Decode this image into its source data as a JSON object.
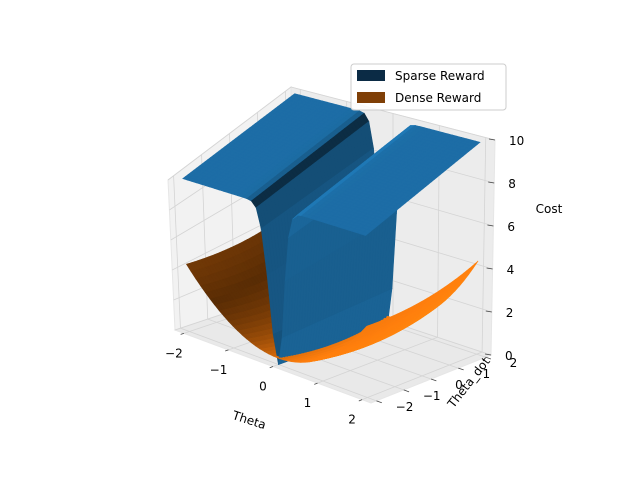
{
  "chart_data": {
    "type": "surface3d",
    "title": "",
    "xlabel": "Theta",
    "ylabel": "Theta_dot",
    "zlabel": "Cost",
    "xlim": [
      -2.2,
      2.2
    ],
    "ylim": [
      -2.2,
      2.2
    ],
    "zlim": [
      0,
      10
    ],
    "x_ticks": [
      "−2",
      "−1",
      "0",
      "1",
      "2"
    ],
    "y_ticks": [
      "−2",
      "−1",
      "0",
      "1",
      "2"
    ],
    "z_ticks": [
      "0",
      "2",
      "4",
      "6",
      "8",
      "10"
    ],
    "grid": true,
    "legend_position": "top-right",
    "series": [
      {
        "name": "Sparse Reward",
        "color": "#1f77b4",
        "legend_color": "#0b2b45",
        "formula": "10 * (1 - exp(-theta^2 / 0.05))",
        "theta_range": [
          -2,
          2
        ],
        "theta_dot_range": [
          -2,
          2
        ],
        "z_min": 0,
        "z_max": 10
      },
      {
        "name": "Dense Reward",
        "color": "#ff7f0e",
        "legend_color": "#7f3f07",
        "formula": "theta^2 + 0.1 * theta_dot^2",
        "theta_range": [
          -2,
          2
        ],
        "theta_dot_range": [
          -2,
          2
        ],
        "z_min": 0,
        "z_max": 4.4
      }
    ]
  }
}
